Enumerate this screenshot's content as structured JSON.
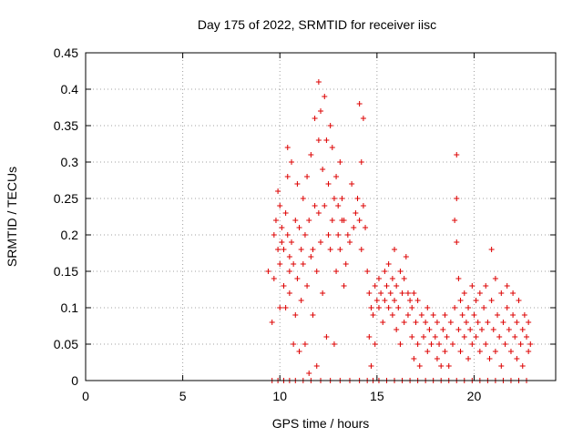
{
  "chart_data": {
    "type": "scatter",
    "title": "Day 175 of 2022, SRMTID for receiver iisc",
    "xlabel": "GPS time / hours",
    "ylabel": "SRMTID / TECUs",
    "xlim": [
      0,
      24.2
    ],
    "ylim": [
      0,
      0.45
    ],
    "xticks": [
      0,
      5,
      10,
      15,
      20
    ],
    "xtick_labels": [
      "0",
      "5",
      "10",
      "15",
      "20"
    ],
    "yticks": [
      0,
      0.05,
      0.1,
      0.15,
      0.2,
      0.25,
      0.3,
      0.35,
      0.4,
      0.45
    ],
    "ytick_labels": [
      "0",
      "0.05",
      "0.1",
      "0.15",
      "0.2",
      "0.25",
      "0.3",
      "0.35",
      "0.4",
      "0.45"
    ],
    "grid": true,
    "marker": "plus",
    "color": "#dd0000",
    "series": [
      {
        "points": [
          [
            9.4,
            0.15
          ],
          [
            9.6,
            0.08
          ],
          [
            9.7,
            0.14
          ],
          [
            9.7,
            0.2
          ],
          [
            9.8,
            0.22
          ],
          [
            9.9,
            0.26
          ],
          [
            9.9,
            0.18
          ],
          [
            10.0,
            0.24
          ],
          [
            10.0,
            0.16
          ],
          [
            10.0,
            0.1
          ],
          [
            10.1,
            0.21
          ],
          [
            10.1,
            0.19
          ],
          [
            10.2,
            0.18
          ],
          [
            10.2,
            0.13
          ],
          [
            10.3,
            0.23
          ],
          [
            10.3,
            0.1
          ],
          [
            10.4,
            0.32
          ],
          [
            10.4,
            0.28
          ],
          [
            10.4,
            0.2
          ],
          [
            10.5,
            0.17
          ],
          [
            10.5,
            0.15
          ],
          [
            10.5,
            0.12
          ],
          [
            10.6,
            0.3
          ],
          [
            10.6,
            0.19
          ],
          [
            10.7,
            0.05
          ],
          [
            10.7,
            0.16
          ],
          [
            10.8,
            0.22
          ],
          [
            10.8,
            0.09
          ],
          [
            10.9,
            0.27
          ],
          [
            10.9,
            0.14
          ],
          [
            11.0,
            0.04
          ],
          [
            11.0,
            0.21
          ],
          [
            11.1,
            0.18
          ],
          [
            11.1,
            0.11
          ],
          [
            11.2,
            0.25
          ],
          [
            11.2,
            0.16
          ],
          [
            11.3,
            0.05
          ],
          [
            11.3,
            0.2
          ],
          [
            11.4,
            0.28
          ],
          [
            11.4,
            0.13
          ],
          [
            11.5,
            0.22
          ],
          [
            11.5,
            0.01
          ],
          [
            11.6,
            0.31
          ],
          [
            11.6,
            0.17
          ],
          [
            11.7,
            0.18
          ],
          [
            11.7,
            0.09
          ],
          [
            11.8,
            0.36
          ],
          [
            11.8,
            0.24
          ],
          [
            11.9,
            0.02
          ],
          [
            11.9,
            0.15
          ],
          [
            12.0,
            0.41
          ],
          [
            12.0,
            0.33
          ],
          [
            12.0,
            0.23
          ],
          [
            12.1,
            0.37
          ],
          [
            12.1,
            0.19
          ],
          [
            12.2,
            0.29
          ],
          [
            12.2,
            0.12
          ],
          [
            12.3,
            0.39
          ],
          [
            12.3,
            0.24
          ],
          [
            12.4,
            0.33
          ],
          [
            12.4,
            0.06
          ],
          [
            12.5,
            0.27
          ],
          [
            12.5,
            0.2
          ],
          [
            12.6,
            0.35
          ],
          [
            12.6,
            0.18
          ],
          [
            12.7,
            0.32
          ],
          [
            12.7,
            0.22
          ],
          [
            12.8,
            0.05
          ],
          [
            12.8,
            0.25
          ],
          [
            12.9,
            0.28
          ],
          [
            12.9,
            0.15
          ],
          [
            13.0,
            0.2
          ],
          [
            13.0,
            0.24
          ],
          [
            13.1,
            0.3
          ],
          [
            13.1,
            0.18
          ],
          [
            13.2,
            0.25
          ],
          [
            13.2,
            0.22
          ],
          [
            13.3,
            0.13
          ],
          [
            13.3,
            0.22
          ],
          [
            13.4,
            0.16
          ],
          [
            13.5,
            0.2
          ],
          [
            13.6,
            0.19
          ],
          [
            13.7,
            0.27
          ],
          [
            13.8,
            0.21
          ],
          [
            13.9,
            0.23
          ],
          [
            14.0,
            0.25
          ],
          [
            14.1,
            0.38
          ],
          [
            14.1,
            0.22
          ],
          [
            14.2,
            0.18
          ],
          [
            14.2,
            0.3
          ],
          [
            14.3,
            0.36
          ],
          [
            14.3,
            0.24
          ],
          [
            14.4,
            0.21
          ],
          [
            14.5,
            0.15
          ],
          [
            14.6,
            0.12
          ],
          [
            14.6,
            0.06
          ],
          [
            14.7,
            0.1
          ],
          [
            14.7,
            0.02
          ],
          [
            14.8,
            0.09
          ],
          [
            14.9,
            0.13
          ],
          [
            14.9,
            0.05
          ],
          [
            15.0,
            0.11
          ],
          [
            15.1,
            0.14
          ],
          [
            15.1,
            0.1
          ],
          [
            15.2,
            0.12
          ],
          [
            15.3,
            0.08
          ],
          [
            15.4,
            0.15
          ],
          [
            15.4,
            0.11
          ],
          [
            15.5,
            0.13
          ],
          [
            15.6,
            0.1
          ],
          [
            15.6,
            0.16
          ],
          [
            15.7,
            0.12
          ],
          [
            15.8,
            0.14
          ],
          [
            15.8,
            0.09
          ],
          [
            15.9,
            0.18
          ],
          [
            15.9,
            0.11
          ],
          [
            16.0,
            0.13
          ],
          [
            16.0,
            0.07
          ],
          [
            16.1,
            0.1
          ],
          [
            16.2,
            0.15
          ],
          [
            16.2,
            0.05
          ],
          [
            16.3,
            0.12
          ],
          [
            16.4,
            0.08
          ],
          [
            16.4,
            0.14
          ],
          [
            16.5,
            0.17
          ],
          [
            16.6,
            0.12
          ],
          [
            16.6,
            0.09
          ],
          [
            16.7,
            0.11
          ],
          [
            16.8,
            0.1
          ],
          [
            16.8,
            0.06
          ],
          [
            16.9,
            0.03
          ],
          [
            16.9,
            0.12
          ],
          [
            17.0,
            0.08
          ],
          [
            17.1,
            0.05
          ],
          [
            17.1,
            0.11
          ],
          [
            17.2,
            0.02
          ],
          [
            17.3,
            0.09
          ],
          [
            17.4,
            0.06
          ],
          [
            17.5,
            0.08
          ],
          [
            17.6,
            0.04
          ],
          [
            17.6,
            0.1
          ],
          [
            17.7,
            0.07
          ],
          [
            17.8,
            0.05
          ],
          [
            17.9,
            0.09
          ],
          [
            18.0,
            0.06
          ],
          [
            18.1,
            0.03
          ],
          [
            18.1,
            0.08
          ],
          [
            18.2,
            0.05
          ],
          [
            18.3,
            0.02
          ],
          [
            18.4,
            0.07
          ],
          [
            18.5,
            0.04
          ],
          [
            18.5,
            0.09
          ],
          [
            18.6,
            0.06
          ],
          [
            18.7,
            0.02
          ],
          [
            18.8,
            0.08
          ],
          [
            18.9,
            0.05
          ],
          [
            19.0,
            0.1
          ],
          [
            19.0,
            0.22
          ],
          [
            19.1,
            0.31
          ],
          [
            19.1,
            0.25
          ],
          [
            19.1,
            0.19
          ],
          [
            19.2,
            0.14
          ],
          [
            19.2,
            0.07
          ],
          [
            19.3,
            0.11
          ],
          [
            19.3,
            0.04
          ],
          [
            19.4,
            0.09
          ],
          [
            19.5,
            0.12
          ],
          [
            19.5,
            0.06
          ],
          [
            19.6,
            0.08
          ],
          [
            19.7,
            0.03
          ],
          [
            19.7,
            0.1
          ],
          [
            19.8,
            0.07
          ],
          [
            19.9,
            0.05
          ],
          [
            19.9,
            0.13
          ],
          [
            20.0,
            0.09
          ],
          [
            20.1,
            0.06
          ],
          [
            20.1,
            0.11
          ],
          [
            20.2,
            0.08
          ],
          [
            20.3,
            0.04
          ],
          [
            20.3,
            0.12
          ],
          [
            20.4,
            0.07
          ],
          [
            20.5,
            0.1
          ],
          [
            20.6,
            0.05
          ],
          [
            20.6,
            0.13
          ],
          [
            20.7,
            0.08
          ],
          [
            20.8,
            0.03
          ],
          [
            20.9,
            0.11
          ],
          [
            20.9,
            0.18
          ],
          [
            21.0,
            0.07
          ],
          [
            21.1,
            0.14
          ],
          [
            21.1,
            0.04
          ],
          [
            21.2,
            0.09
          ],
          [
            21.3,
            0.06
          ],
          [
            21.4,
            0.12
          ],
          [
            21.4,
            0.02
          ],
          [
            21.5,
            0.08
          ],
          [
            21.6,
            0.05
          ],
          [
            21.7,
            0.1
          ],
          [
            21.7,
            0.13
          ],
          [
            21.8,
            0.07
          ],
          [
            21.9,
            0.04
          ],
          [
            22.0,
            0.09
          ],
          [
            22.0,
            0.12
          ],
          [
            22.1,
            0.06
          ],
          [
            22.2,
            0.03
          ],
          [
            22.2,
            0.08
          ],
          [
            22.3,
            0.11
          ],
          [
            22.4,
            0.05
          ],
          [
            22.5,
            0.07
          ],
          [
            22.5,
            0.02
          ],
          [
            22.6,
            0.09
          ],
          [
            22.7,
            0.06
          ],
          [
            22.8,
            0.04
          ],
          [
            22.8,
            0.08
          ],
          [
            22.9,
            0.05
          ],
          [
            9.6,
            0.0
          ],
          [
            9.9,
            0.0
          ],
          [
            10.2,
            0.0
          ],
          [
            10.5,
            0.0
          ],
          [
            10.8,
            0.0
          ],
          [
            11.2,
            0.0
          ],
          [
            11.6,
            0.0
          ],
          [
            12.1,
            0.0
          ],
          [
            12.6,
            0.0
          ],
          [
            13.1,
            0.0
          ],
          [
            13.6,
            0.0
          ],
          [
            14.1,
            0.0
          ],
          [
            14.5,
            0.0
          ],
          [
            14.8,
            0.0
          ],
          [
            15.1,
            0.0
          ],
          [
            15.5,
            0.0
          ],
          [
            15.9,
            0.0
          ],
          [
            16.3,
            0.0
          ],
          [
            16.7,
            0.0
          ],
          [
            17.1,
            0.0
          ],
          [
            17.5,
            0.0
          ],
          [
            17.9,
            0.0
          ],
          [
            18.3,
            0.0
          ],
          [
            18.7,
            0.0
          ],
          [
            19.1,
            0.0
          ],
          [
            19.5,
            0.0
          ],
          [
            19.9,
            0.0
          ],
          [
            20.3,
            0.0
          ],
          [
            20.7,
            0.0
          ],
          [
            21.1,
            0.0
          ],
          [
            21.5,
            0.0
          ],
          [
            21.9,
            0.0
          ],
          [
            22.3,
            0.0
          ],
          [
            22.7,
            0.0
          ]
        ]
      }
    ]
  }
}
